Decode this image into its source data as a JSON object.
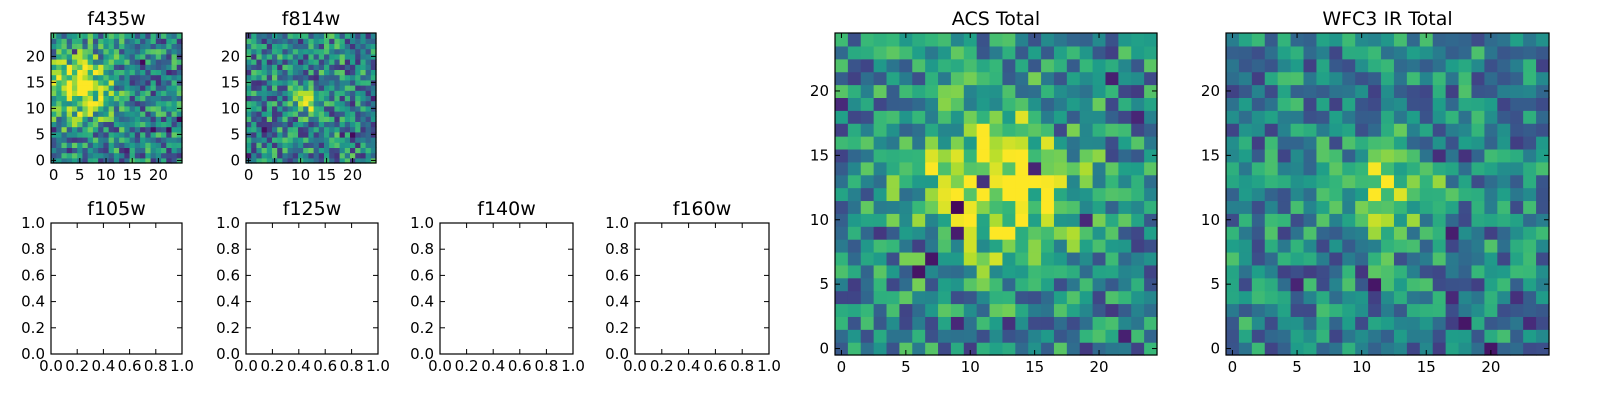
{
  "chart_data": [
    {
      "type": "heatmap",
      "title": "f435w",
      "xlim": [
        -0.5,
        24.5
      ],
      "ylim": [
        -0.5,
        24.5
      ],
      "xticks": [
        0,
        5,
        10,
        15,
        20
      ],
      "yticks": [
        0,
        5,
        10,
        15,
        20
      ],
      "colormap": "viridis",
      "peak": [
        5,
        14,
        18
      ],
      "noise": 0.4,
      "dark_pixels": 14,
      "seed": 11
    },
    {
      "type": "heatmap",
      "title": "f814w",
      "xlim": [
        -0.5,
        24.5
      ],
      "ylim": [
        -0.5,
        24.5
      ],
      "xticks": [
        0,
        5,
        10,
        15,
        20
      ],
      "yticks": [
        0,
        5,
        10,
        15,
        20
      ],
      "colormap": "viridis",
      "peak": [
        11,
        12,
        3
      ],
      "noise": 0.4,
      "dark_pixels": 20,
      "seed": 23
    },
    {
      "type": "heatmap",
      "title": "ACS Total",
      "xlim": [
        -0.5,
        24.5
      ],
      "ylim": [
        -0.5,
        24.5
      ],
      "xticks": [
        0,
        5,
        10,
        15,
        20
      ],
      "yticks": [
        0,
        5,
        10,
        15,
        20
      ],
      "colormap": "viridis",
      "peak": [
        12,
        13,
        22
      ],
      "noise": 0.36,
      "dark_pixels": 22,
      "seed": 37
    },
    {
      "type": "heatmap",
      "title": "WFC3 IR Total",
      "xlim": [
        -0.5,
        24.5
      ],
      "ylim": [
        -0.5,
        24.5
      ],
      "xticks": [
        0,
        5,
        10,
        15,
        20
      ],
      "yticks": [
        0,
        5,
        10,
        15,
        20
      ],
      "colormap": "viridis",
      "peak": [
        12,
        12,
        6
      ],
      "noise": 0.34,
      "dark_pixels": 20,
      "seed": 53
    },
    {
      "type": "empty",
      "title": "f105w",
      "xlim": [
        0,
        1
      ],
      "ylim": [
        0,
        1
      ],
      "xticks": [
        "0.0",
        "0.2",
        "0.4",
        "0.6",
        "0.8",
        "1.0"
      ],
      "yticks": [
        "0.0",
        "0.2",
        "0.4",
        "0.6",
        "0.8",
        "1.0"
      ]
    },
    {
      "type": "empty",
      "title": "f125w",
      "xlim": [
        0,
        1
      ],
      "ylim": [
        0,
        1
      ],
      "xticks": [
        "0.0",
        "0.2",
        "0.4",
        "0.6",
        "0.8",
        "1.0"
      ],
      "yticks": [
        "0.0",
        "0.2",
        "0.4",
        "0.6",
        "0.8",
        "1.0"
      ]
    },
    {
      "type": "empty",
      "title": "f140w",
      "xlim": [
        0,
        1
      ],
      "ylim": [
        0,
        1
      ],
      "xticks": [
        "0.0",
        "0.2",
        "0.4",
        "0.6",
        "0.8",
        "1.0"
      ],
      "yticks": [
        "0.0",
        "0.2",
        "0.4",
        "0.6",
        "0.8",
        "1.0"
      ]
    },
    {
      "type": "empty",
      "title": "f160w",
      "xlim": [
        0,
        1
      ],
      "ylim": [
        0,
        1
      ],
      "xticks": [
        "0.0",
        "0.2",
        "0.4",
        "0.6",
        "0.8",
        "1.0"
      ],
      "yticks": [
        "0.0",
        "0.2",
        "0.4",
        "0.6",
        "0.8",
        "1.0"
      ]
    }
  ]
}
